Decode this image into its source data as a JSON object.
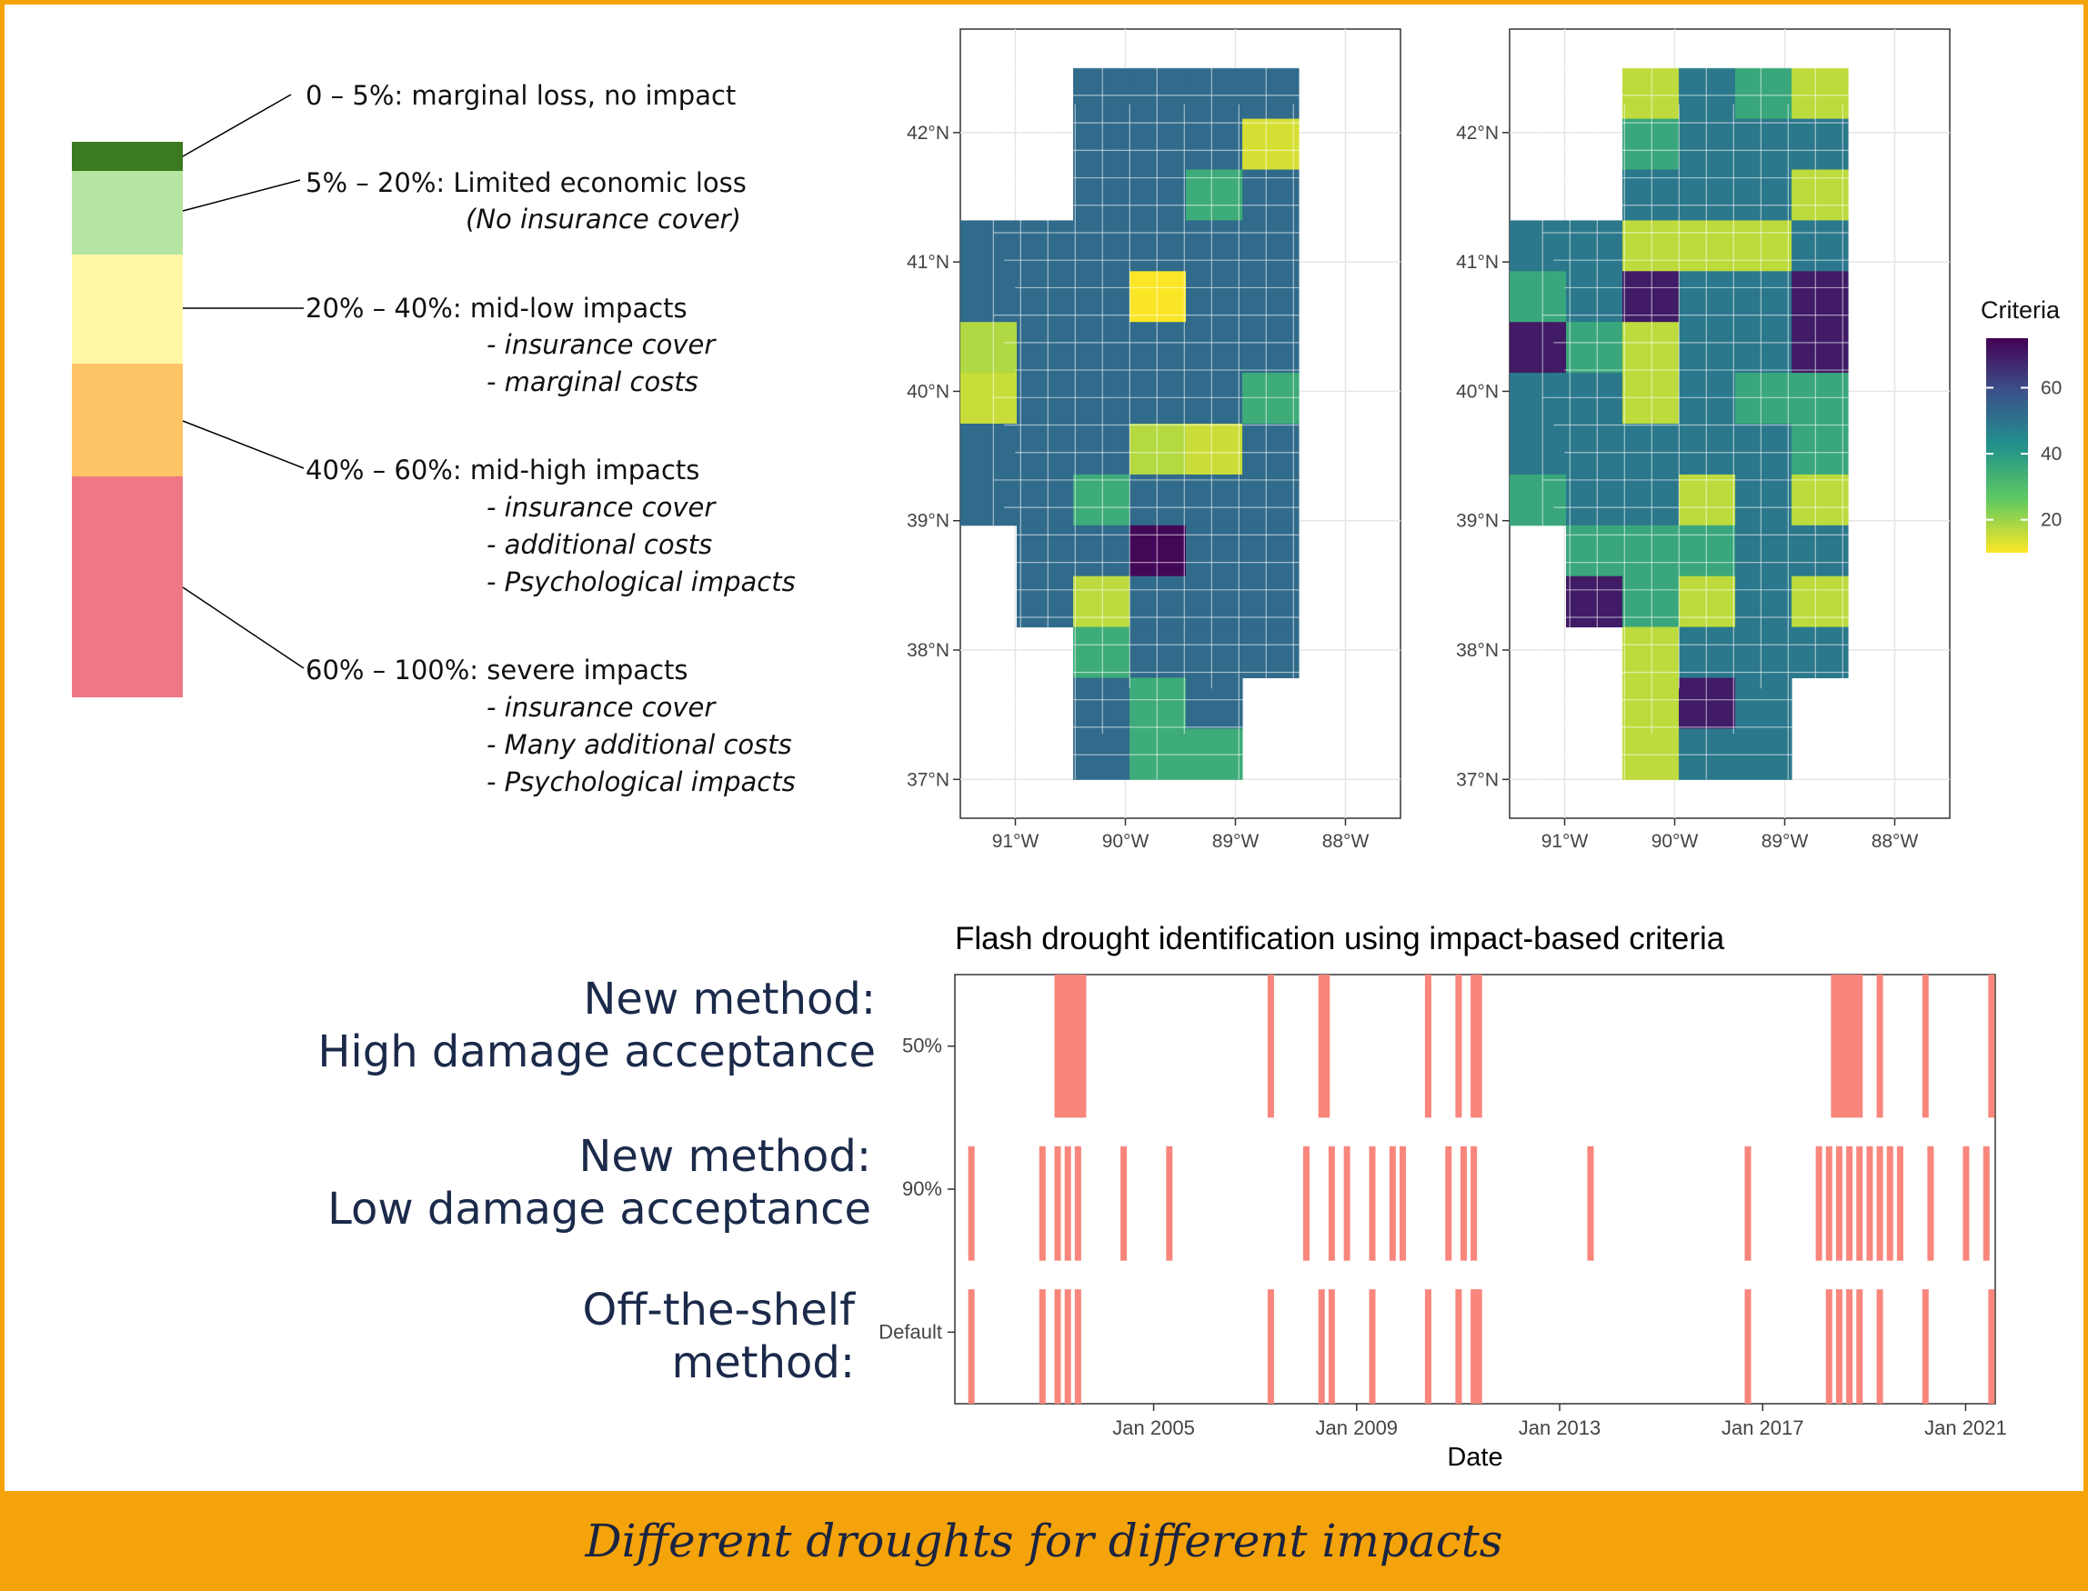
{
  "legend_scale": [
    {
      "range": "0 – 5%: marginal loss, no impact",
      "color": "#3b7a20",
      "sub": []
    },
    {
      "range": "5% – 20%: Limited economic loss",
      "color": "#b5e5a2",
      "sub": [
        "(No insurance cover)"
      ]
    },
    {
      "range": "20% – 40%: mid-low impacts",
      "color": "#fff7a6",
      "sub": [
        "- insurance cover",
        "- marginal costs"
      ]
    },
    {
      "range": "40% – 60%: mid-high impacts",
      "color": "#ffc466",
      "sub": [
        "- insurance cover",
        "- additional costs",
        "- Psychological impacts"
      ]
    },
    {
      "range": "60% – 100%: severe impacts",
      "color": "#f07886",
      "sub": [
        "- insurance cover",
        "- Many additional costs",
        "- Psychological impacts"
      ]
    }
  ],
  "methods": {
    "high": [
      "New method:",
      "High damage acceptance"
    ],
    "low": [
      "New method:",
      "Low damage acceptance"
    ],
    "default": [
      "Off-the-shelf",
      "method:"
    ]
  },
  "footer": {
    "caption": "Different droughts for different impacts"
  },
  "colors": {
    "accent": "#f5a30a",
    "bar": "#f8867c",
    "heading": "#1b2a4a"
  },
  "chart_data": [
    {
      "type": "heatmap",
      "panel": "left",
      "xlabel": "",
      "ylabel": "",
      "x_ticks": [
        "91°W",
        "90°W",
        "89°W",
        "88°W"
      ],
      "y_ticks": [
        "42°N",
        "41°N",
        "40°N",
        "39°N",
        "38°N",
        "37°N"
      ],
      "xlim": [
        -91.5,
        -87.5
      ],
      "ylim": [
        36.7,
        42.8
      ],
      "legend": "none"
    },
    {
      "type": "heatmap",
      "panel": "right",
      "xlabel": "",
      "ylabel": "",
      "x_ticks": [
        "91°W",
        "90°W",
        "89°W",
        "88°W"
      ],
      "y_ticks": [
        "42°N",
        "41°N",
        "40°N",
        "39°N",
        "38°N",
        "37°N"
      ],
      "xlim": [
        -91.5,
        -87.5
      ],
      "ylim": [
        36.7,
        42.8
      ],
      "legend": {
        "title": "Criteria",
        "ticks": [
          20,
          40,
          60
        ],
        "range": [
          10,
          75
        ],
        "placement": "right"
      }
    },
    {
      "type": "bar",
      "title": "Flash drought identification using impact-based criteria",
      "xlabel": "Date",
      "ylabel": "",
      "xlim": [
        "2001-02",
        "2021-08"
      ],
      "x_ticks": [
        "Jan 2005",
        "Jan 2009",
        "Jan 2013",
        "Jan 2017",
        "Jan 2021"
      ],
      "categories": [
        "50%",
        "90%",
        "Default"
      ],
      "series": [
        {
          "category": "50%",
          "events": [
            2003.1,
            2003.2,
            2003.3,
            2003.4,
            2003.5,
            2003.6,
            2007.3,
            2008.3,
            2008.4,
            2010.4,
            2011.0,
            2011.3,
            2011.4,
            2018.4,
            2018.5,
            2018.6,
            2018.7,
            2018.8,
            2018.9,
            2019.3,
            2020.2,
            2021.5
          ]
        },
        {
          "category": "90%",
          "events": [
            2001.4,
            2002.8,
            2003.1,
            2003.3,
            2003.5,
            2004.4,
            2005.3,
            2008.0,
            2008.5,
            2008.8,
            2009.3,
            2009.7,
            2009.9,
            2010.8,
            2011.1,
            2011.3,
            2013.6,
            2016.7,
            2018.1,
            2018.3,
            2018.5,
            2018.7,
            2018.9,
            2019.1,
            2019.3,
            2019.5,
            2019.7,
            2020.3,
            2021.0,
            2021.4
          ]
        },
        {
          "category": "Default",
          "events": [
            2001.4,
            2002.8,
            2003.1,
            2003.3,
            2003.5,
            2007.3,
            2008.3,
            2008.5,
            2009.3,
            2010.4,
            2011.0,
            2011.3,
            2011.4,
            2016.7,
            2018.3,
            2018.5,
            2018.7,
            2018.9,
            2019.3,
            2020.2,
            2021.5
          ]
        }
      ]
    }
  ]
}
